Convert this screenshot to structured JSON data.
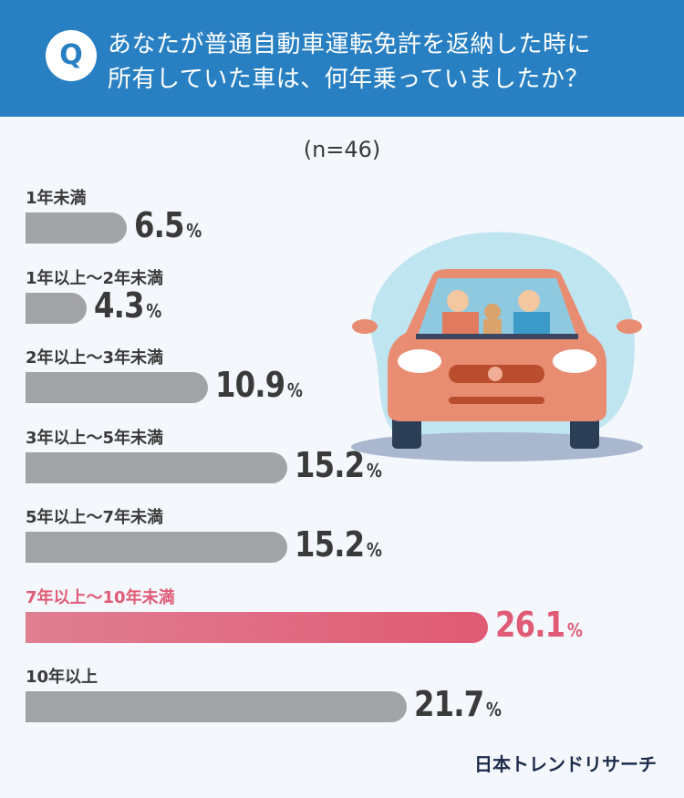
{
  "header": {
    "q_badge": "Q",
    "title_line1": "あなたが普通自動車運転免許を返納した時に",
    "title_line2": "所有していた車は、何年乗っていましたか？"
  },
  "sample": "(n=46)",
  "logo": "日本トレンドリサーチ",
  "colors": {
    "header": "#2880c3",
    "bar": "#a2a3a7",
    "highlight": "#e05c76"
  },
  "chart_data": {
    "type": "bar",
    "orientation": "horizontal",
    "title": "あなたが普通自動車運転免許を返納した時に所有していた車は、何年乗っていましたか？",
    "categories": [
      "1年未満",
      "1年以上～2年未満",
      "2年以上～3年未満",
      "3年以上～5年未満",
      "5年以上～7年未満",
      "7年以上～10年未満",
      "10年以上"
    ],
    "values": [
      6.5,
      4.3,
      10.9,
      15.2,
      15.2,
      26.1,
      21.7
    ],
    "unit": "%",
    "highlight_index": 5,
    "xlabel": "",
    "ylabel": ""
  }
}
